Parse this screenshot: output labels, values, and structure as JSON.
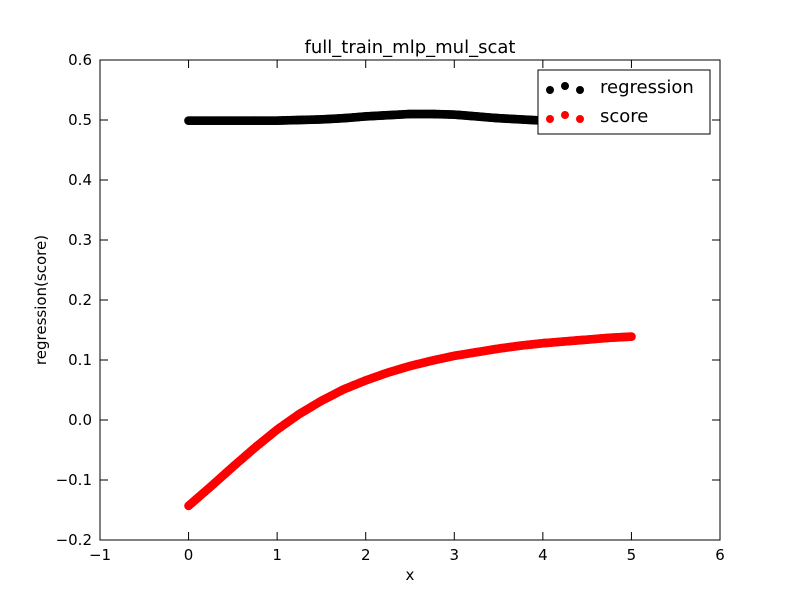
{
  "chart_data": {
    "type": "scatter",
    "title": "full_train_mlp_mul_scat",
    "xlabel": "x",
    "ylabel": "regression(score)",
    "xlim": [
      -1,
      6
    ],
    "ylim": [
      -0.2,
      0.6
    ],
    "xticks": [
      -1,
      0,
      1,
      2,
      3,
      4,
      5,
      6
    ],
    "yticks": [
      -0.2,
      -0.1,
      0.0,
      0.1,
      0.2,
      0.3,
      0.4,
      0.5,
      0.6
    ],
    "xtick_labels": [
      "−1",
      "0",
      "1",
      "2",
      "3",
      "4",
      "5",
      "6"
    ],
    "ytick_labels": [
      "−0.2",
      "−0.1",
      "0.0",
      "0.1",
      "0.2",
      "0.3",
      "0.4",
      "0.5",
      "0.6"
    ],
    "grid": false,
    "legend_position": "top-right",
    "series": [
      {
        "name": "regression",
        "color": "#000000",
        "x": [
          0,
          0.25,
          0.5,
          0.75,
          1.0,
          1.25,
          1.5,
          1.75,
          2.0,
          2.25,
          2.5,
          2.75,
          3.0,
          3.25,
          3.5,
          3.75,
          4.0,
          4.25,
          4.5,
          4.75,
          5.0
        ],
        "values": [
          0.499,
          0.499,
          0.499,
          0.499,
          0.499,
          0.5,
          0.501,
          0.503,
          0.506,
          0.508,
          0.51,
          0.51,
          0.509,
          0.506,
          0.503,
          0.501,
          0.499,
          0.498,
          0.498,
          0.498,
          0.498
        ]
      },
      {
        "name": "score",
        "color": "#ff0000",
        "x": [
          0,
          0.25,
          0.5,
          0.75,
          1.0,
          1.25,
          1.5,
          1.75,
          2.0,
          2.25,
          2.5,
          2.75,
          3.0,
          3.25,
          3.5,
          3.75,
          4.0,
          4.25,
          4.5,
          4.75,
          5.0
        ],
        "values": [
          -0.143,
          -0.111,
          -0.078,
          -0.046,
          -0.016,
          0.01,
          0.032,
          0.051,
          0.066,
          0.079,
          0.09,
          0.099,
          0.107,
          0.113,
          0.119,
          0.124,
          0.128,
          0.131,
          0.134,
          0.137,
          0.139
        ]
      }
    ]
  }
}
